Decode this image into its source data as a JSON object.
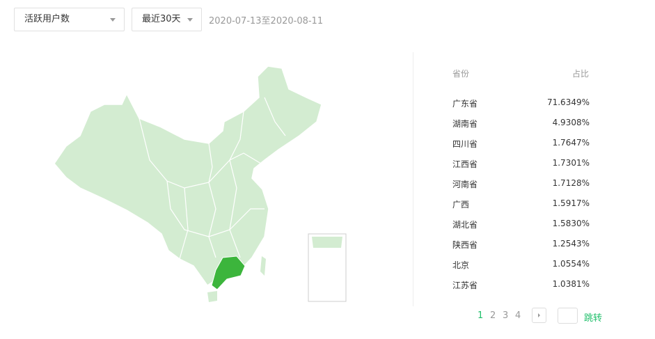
{
  "filters": {
    "metric": "活跃用户数",
    "period": "最近30天",
    "date_range": "2020-07-13至2020-08-11"
  },
  "map": {
    "highlight_region": "广东省",
    "base_color": "#d3ecd1",
    "highlight_color": "#3cb53c"
  },
  "table": {
    "headers": [
      "省份",
      "占比"
    ],
    "rows": [
      [
        "广东省",
        "71.6349%"
      ],
      [
        "湖南省",
        "4.9308%"
      ],
      [
        "四川省",
        "1.7647%"
      ],
      [
        "江西省",
        "1.7301%"
      ],
      [
        "河南省",
        "1.7128%"
      ],
      [
        "广西",
        "1.5917%"
      ],
      [
        "湖北省",
        "1.5830%"
      ],
      [
        "陕西省",
        "1.2543%"
      ],
      [
        "北京",
        "1.0554%"
      ],
      [
        "江苏省",
        "1.0381%"
      ]
    ]
  },
  "pagination": {
    "pages": [
      "1",
      "2",
      "3",
      "4"
    ],
    "current": "1",
    "jump_label": "跳转",
    "accent": "#1fbf6a"
  }
}
